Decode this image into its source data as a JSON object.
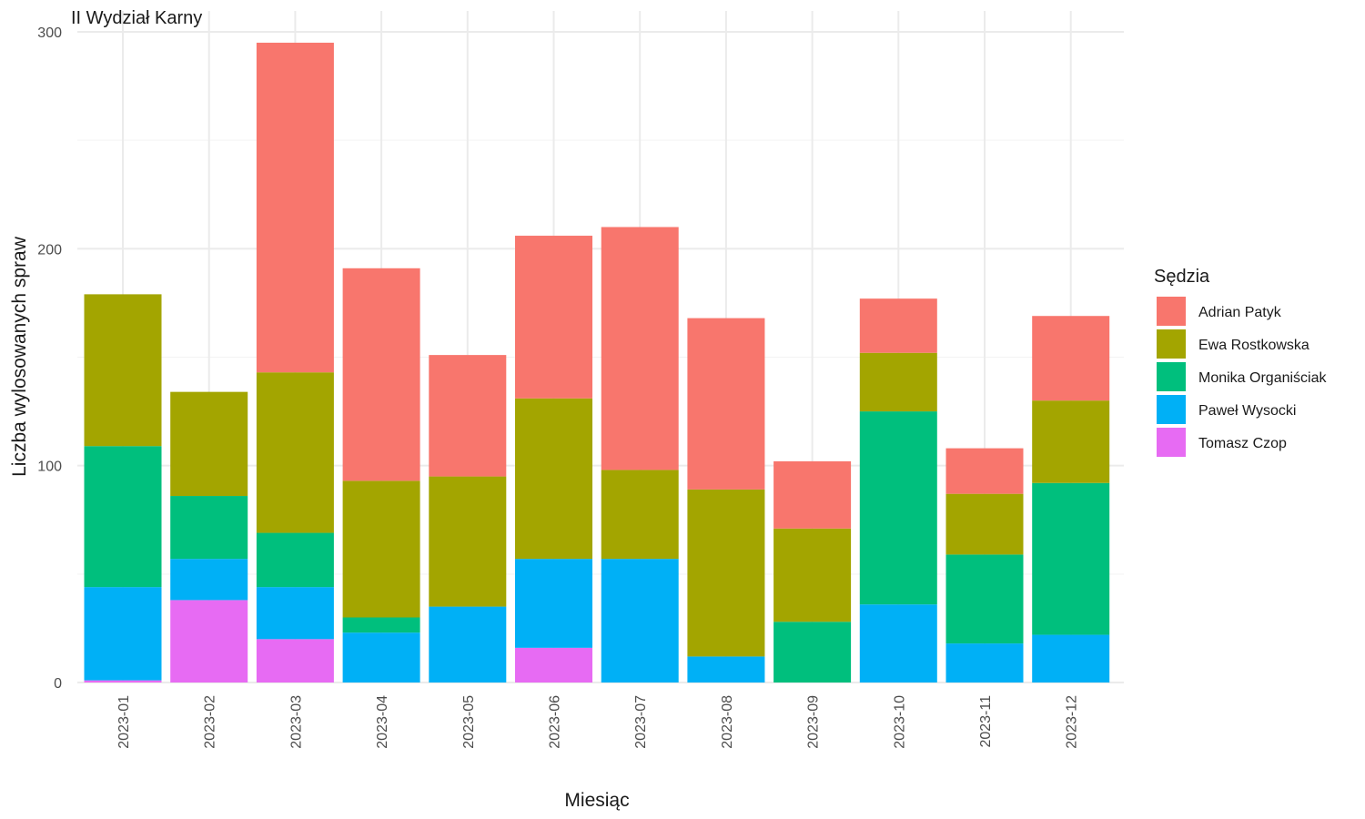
{
  "chart_data": {
    "type": "bar",
    "stacked": true,
    "title": "II Wydział Karny",
    "xlabel": "Miesiąc",
    "ylabel": "Liczba wylosowanych spraw",
    "ylim": [
      0,
      300
    ],
    "yticks": [
      0,
      100,
      200,
      300
    ],
    "grid": true,
    "legend_title": "Sędzia",
    "legend_position": "right",
    "categories": [
      "2023-01",
      "2023-02",
      "2023-03",
      "2023-04",
      "2023-05",
      "2023-06",
      "2023-07",
      "2023-08",
      "2023-09",
      "2023-10",
      "2023-11",
      "2023-12"
    ],
    "series": [
      {
        "name": "Tomasz Czop",
        "color": "#E76BF3",
        "values": [
          1,
          38,
          20,
          0,
          0,
          16,
          0,
          0,
          0,
          0,
          0,
          0
        ]
      },
      {
        "name": "Paweł Wysocki",
        "color": "#00B0F6",
        "values": [
          43,
          19,
          24,
          23,
          35,
          41,
          57,
          12,
          0,
          36,
          18,
          22
        ]
      },
      {
        "name": "Monika Organiściak",
        "color": "#00BF7D",
        "values": [
          65,
          29,
          25,
          7,
          0,
          0,
          0,
          0,
          28,
          89,
          41,
          70
        ]
      },
      {
        "name": "Ewa Rostkowska",
        "color": "#A3A500",
        "values": [
          70,
          48,
          74,
          63,
          60,
          74,
          41,
          77,
          43,
          27,
          28,
          38
        ]
      },
      {
        "name": "Adrian Patyk",
        "color": "#F8766D",
        "values": [
          0,
          0,
          152,
          98,
          56,
          75,
          112,
          79,
          31,
          25,
          21,
          39
        ]
      }
    ],
    "legend_order": [
      "Adrian Patyk",
      "Ewa Rostkowska",
      "Monika Organiściak",
      "Paweł Wysocki",
      "Tomasz Czop"
    ]
  }
}
